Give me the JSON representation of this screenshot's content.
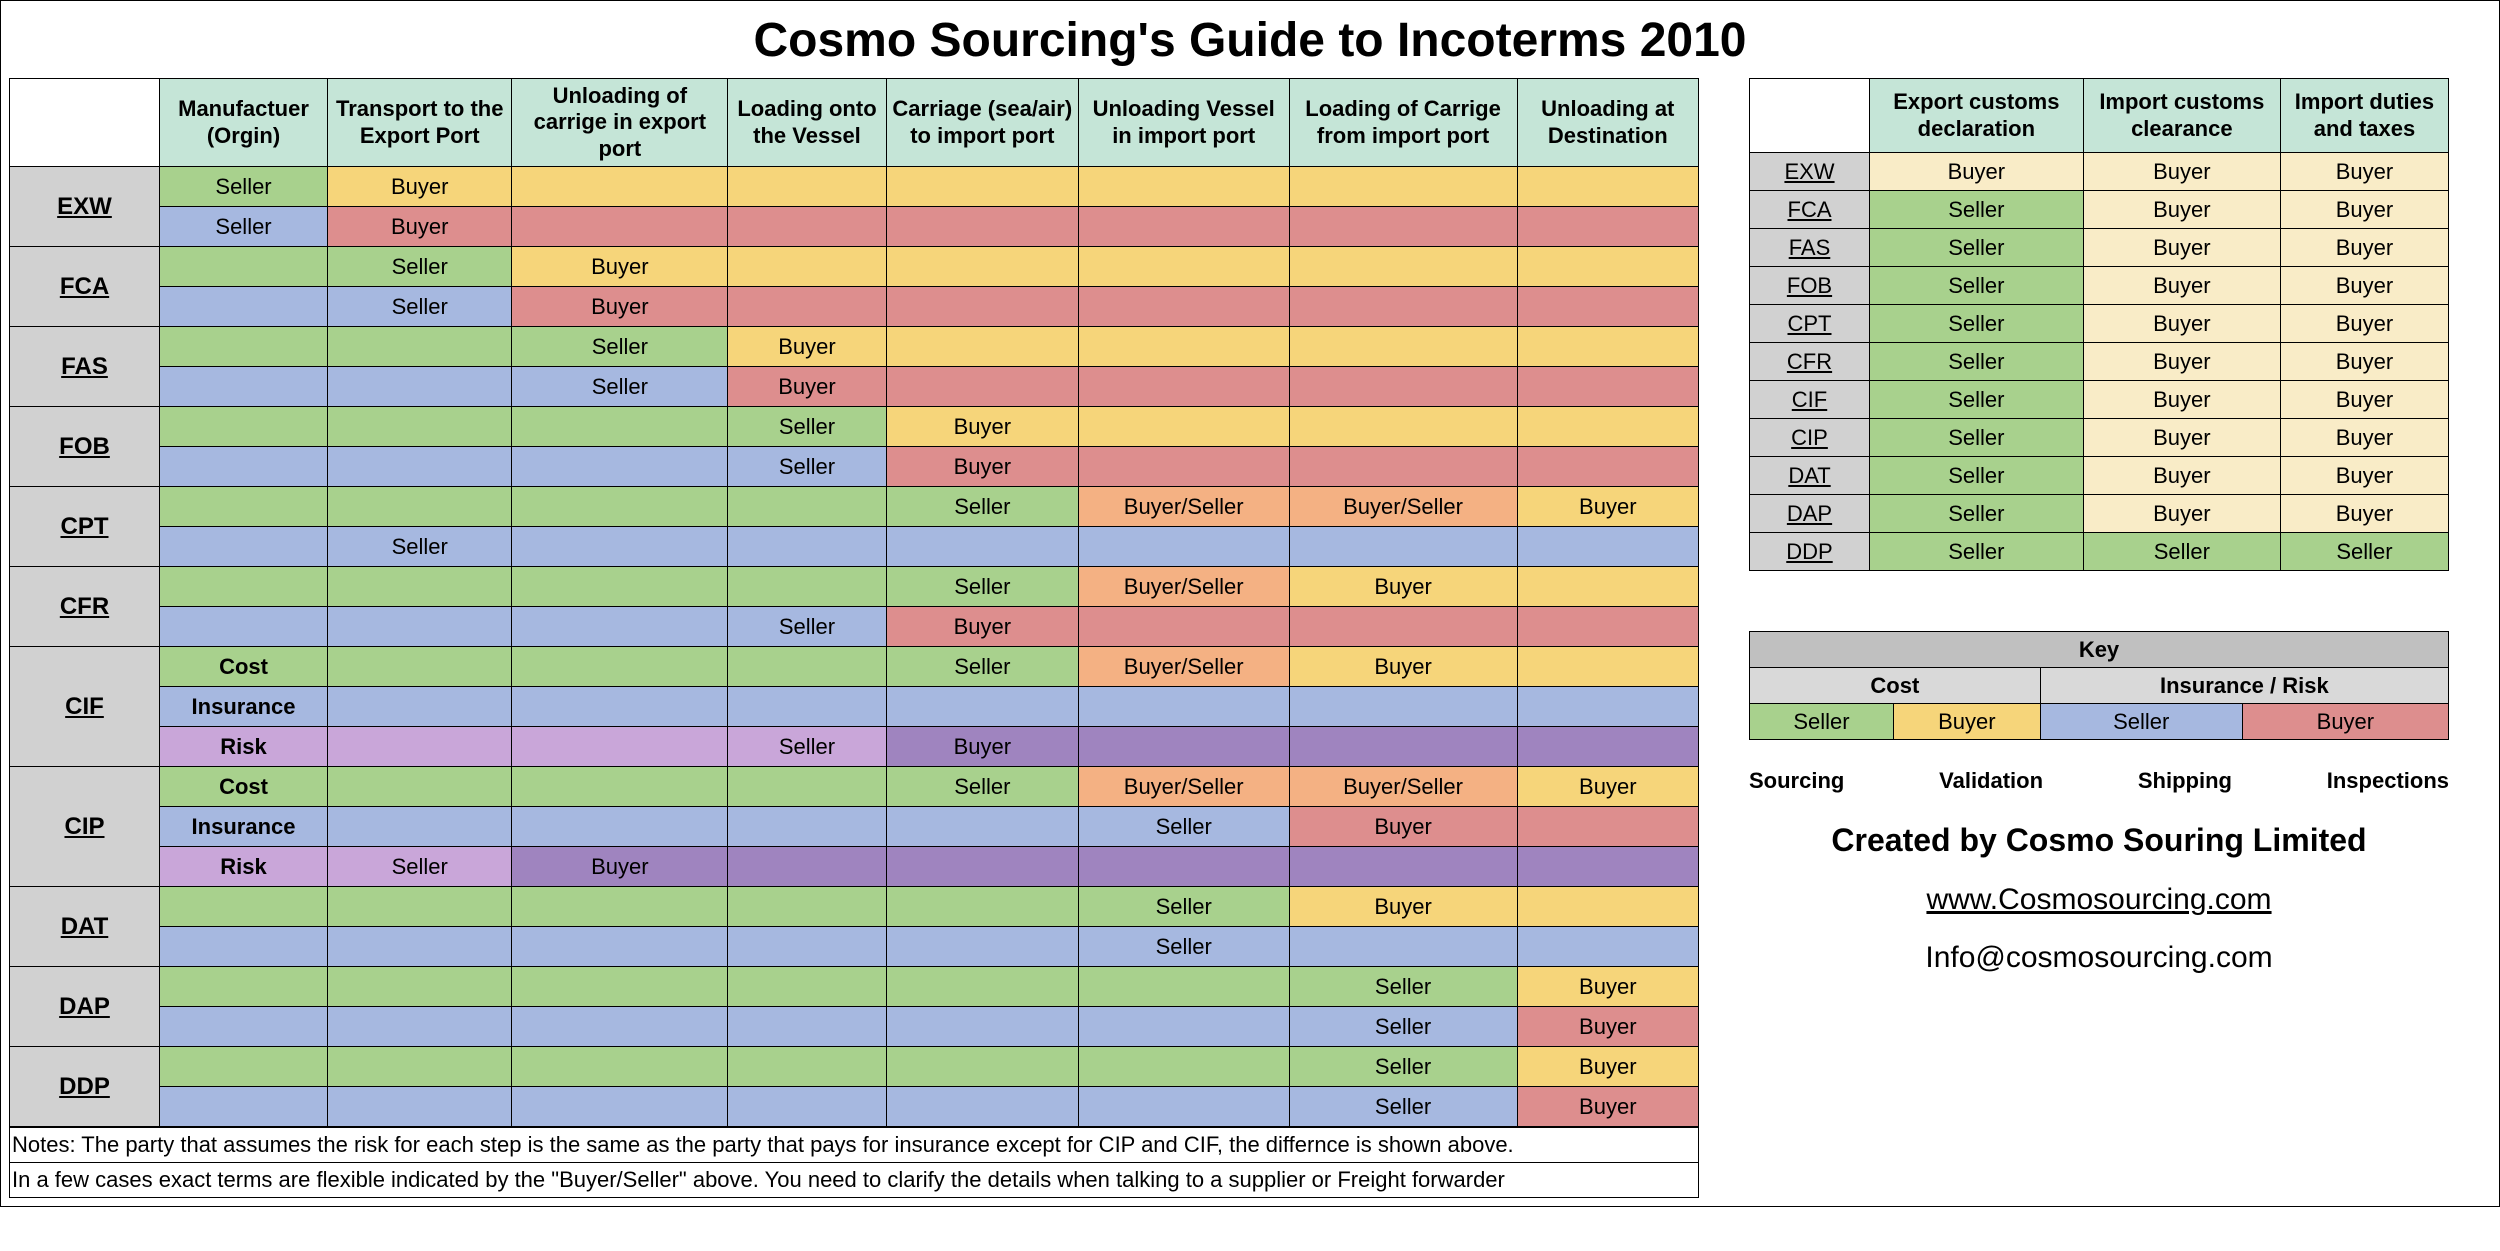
{
  "title": "Cosmo Sourcing's Guide to Incoterms 2010",
  "colors": {
    "header_bg": "#c5e5d7",
    "term_bg": "#d1d1d1",
    "cost_seller": "#a8d18d",
    "cost_buyer": "#f6d57a",
    "cost_both": "#f4b183",
    "ins_seller": "#a6b8e0",
    "ins_buyer": "#dd8e8e",
    "risk_seller": "#c9a6d9",
    "risk_buyer": "#9f84bf",
    "border": "#000000",
    "key_hdr": "#c0c0c0",
    "key_sub": "#d9d9d9"
  },
  "main_headers": [
    "Manufactuer (Orgin)",
    "Transport to the Export Port",
    "Unloading of carrige in export port",
    "Loading onto the Vessel",
    "Carriage (sea/air) to import port",
    "Unloading Vessel in import port",
    "Loading of Carrige from import port",
    "Unloading at Destination"
  ],
  "terms": [
    {
      "code": "EXW",
      "rows": [
        {
          "kind": "cost",
          "label": "",
          "cells": [
            "Seller",
            "Buyer",
            "",
            "",
            "",
            "",
            "",
            ""
          ]
        },
        {
          "kind": "ins",
          "label": "",
          "cells": [
            "Seller",
            "Buyer",
            "",
            "",
            "",
            "",
            "",
            ""
          ]
        }
      ]
    },
    {
      "code": "FCA",
      "rows": [
        {
          "kind": "cost",
          "label": "",
          "cells": [
            "",
            "Seller",
            "Buyer",
            "",
            "",
            "",
            "",
            ""
          ]
        },
        {
          "kind": "ins",
          "label": "",
          "cells": [
            "",
            "Seller",
            "Buyer",
            "",
            "",
            "",
            "",
            ""
          ]
        }
      ]
    },
    {
      "code": "FAS",
      "rows": [
        {
          "kind": "cost",
          "label": "",
          "cells": [
            "",
            "",
            "Seller",
            "Buyer",
            "",
            "",
            "",
            ""
          ]
        },
        {
          "kind": "ins",
          "label": "",
          "cells": [
            "",
            "",
            "Seller",
            "Buyer",
            "",
            "",
            "",
            ""
          ]
        }
      ]
    },
    {
      "code": "FOB",
      "rows": [
        {
          "kind": "cost",
          "label": "",
          "cells": [
            "",
            "",
            "",
            "Seller",
            "Buyer",
            "",
            "",
            ""
          ]
        },
        {
          "kind": "ins",
          "label": "",
          "cells": [
            "",
            "",
            "",
            "Seller",
            "Buyer",
            "",
            "",
            ""
          ]
        }
      ]
    },
    {
      "code": "CPT",
      "rows": [
        {
          "kind": "cost",
          "label": "",
          "cells": [
            "",
            "",
            "",
            "",
            "Seller",
            "Buyer/Seller",
            "Buyer/Seller",
            "Buyer"
          ]
        },
        {
          "kind": "ins",
          "label": "",
          "cells": [
            "",
            "Seller",
            "",
            "",
            "",
            "",
            "",
            ""
          ]
        }
      ]
    },
    {
      "code": "CFR",
      "rows": [
        {
          "kind": "cost",
          "label": "",
          "cells": [
            "",
            "",
            "",
            "",
            "Seller",
            "Buyer/Seller",
            "Buyer",
            ""
          ]
        },
        {
          "kind": "ins",
          "label": "",
          "cells": [
            "",
            "",
            "",
            "Seller",
            "Buyer",
            "",
            "",
            ""
          ]
        }
      ]
    },
    {
      "code": "CIF",
      "rows": [
        {
          "kind": "cost",
          "label": "Cost",
          "cells": [
            "",
            "",
            "",
            "",
            "Seller",
            "Buyer/Seller",
            "Buyer",
            ""
          ]
        },
        {
          "kind": "ins",
          "label": "Insurance",
          "cells": [
            "",
            "",
            "",
            "",
            "",
            "",
            "",
            ""
          ]
        },
        {
          "kind": "risk",
          "label": "Risk",
          "cells": [
            "",
            "",
            "",
            "Seller",
            "Buyer",
            "",
            "",
            ""
          ]
        }
      ]
    },
    {
      "code": "CIP",
      "rows": [
        {
          "kind": "cost",
          "label": "Cost",
          "cells": [
            "",
            "",
            "",
            "",
            "Seller",
            "Buyer/Seller",
            "Buyer/Seller",
            "Buyer"
          ]
        },
        {
          "kind": "ins",
          "label": "Insurance",
          "cells": [
            "",
            "",
            "",
            "",
            "",
            "Seller",
            "Buyer",
            ""
          ]
        },
        {
          "kind": "risk",
          "label": "Risk",
          "cells": [
            "",
            "Seller",
            "Buyer",
            "",
            "",
            "",
            "",
            ""
          ]
        }
      ]
    },
    {
      "code": "DAT",
      "rows": [
        {
          "kind": "cost",
          "label": "",
          "cells": [
            "",
            "",
            "",
            "",
            "",
            "Seller",
            "Buyer",
            ""
          ]
        },
        {
          "kind": "ins",
          "label": "",
          "cells": [
            "",
            "",
            "",
            "",
            "",
            "Seller",
            "",
            ""
          ]
        }
      ]
    },
    {
      "code": "DAP",
      "rows": [
        {
          "kind": "cost",
          "label": "",
          "cells": [
            "",
            "",
            "",
            "",
            "",
            "",
            "Seller",
            "Buyer"
          ]
        },
        {
          "kind": "ins",
          "label": "",
          "cells": [
            "",
            "",
            "",
            "",
            "",
            "",
            "Seller",
            "Buyer"
          ]
        }
      ]
    },
    {
      "code": "DDP",
      "rows": [
        {
          "kind": "cost",
          "label": "",
          "cells": [
            "",
            "",
            "",
            "",
            "",
            "",
            "Seller",
            "Buyer"
          ]
        },
        {
          "kind": "ins",
          "label": "",
          "cells": [
            "",
            "",
            "",
            "",
            "",
            "",
            "Seller",
            "Buyer"
          ]
        }
      ]
    }
  ],
  "notes": [
    "Notes: The party that assumes the risk for each step is the same as the party that pays for insurance except for CIP and CIF, the differnce is shown above.",
    "In a few cases exact terms are flexible indicated by the \"Buyer/Seller\" above. You need to clarify the details when talking to a supplier or Freight forwarder"
  ],
  "customs": {
    "headers": [
      "Export customs declaration",
      "Import customs clearance",
      "Import duties and taxes"
    ],
    "rows": [
      {
        "code": "EXW",
        "cells": [
          "Buyer",
          "Buyer",
          "Buyer"
        ]
      },
      {
        "code": "FCA",
        "cells": [
          "Seller",
          "Buyer",
          "Buyer"
        ]
      },
      {
        "code": "FAS",
        "cells": [
          "Seller",
          "Buyer",
          "Buyer"
        ]
      },
      {
        "code": "FOB",
        "cells": [
          "Seller",
          "Buyer",
          "Buyer"
        ]
      },
      {
        "code": "CPT",
        "cells": [
          "Seller",
          "Buyer",
          "Buyer"
        ]
      },
      {
        "code": "CFR",
        "cells": [
          "Seller",
          "Buyer",
          "Buyer"
        ]
      },
      {
        "code": "CIF",
        "cells": [
          "Seller",
          "Buyer",
          "Buyer"
        ]
      },
      {
        "code": "CIP",
        "cells": [
          "Seller",
          "Buyer",
          "Buyer"
        ]
      },
      {
        "code": "DAT",
        "cells": [
          "Seller",
          "Buyer",
          "Buyer"
        ]
      },
      {
        "code": "DAP",
        "cells": [
          "Seller",
          "Buyer",
          "Buyer"
        ]
      },
      {
        "code": "DDP",
        "cells": [
          "Seller",
          "Seller",
          "Seller"
        ]
      }
    ]
  },
  "key": {
    "title": "Key",
    "groups": [
      "Cost",
      "Insurance / Risk"
    ],
    "cells": [
      {
        "label": "Seller",
        "color": "#a8d18d"
      },
      {
        "label": "Buyer",
        "color": "#f6d57a"
      },
      {
        "label": "Seller",
        "color": "#a6b8e0"
      },
      {
        "label": "Buyer",
        "color": "#dd8e8e"
      }
    ]
  },
  "services": [
    "Sourcing",
    "Validation",
    "Shipping",
    "Inspections"
  ],
  "created_by": "Created by Cosmo Souring Limited",
  "website": "www.Cosmosourcing.com",
  "email": "Info@cosmosourcing.com"
}
